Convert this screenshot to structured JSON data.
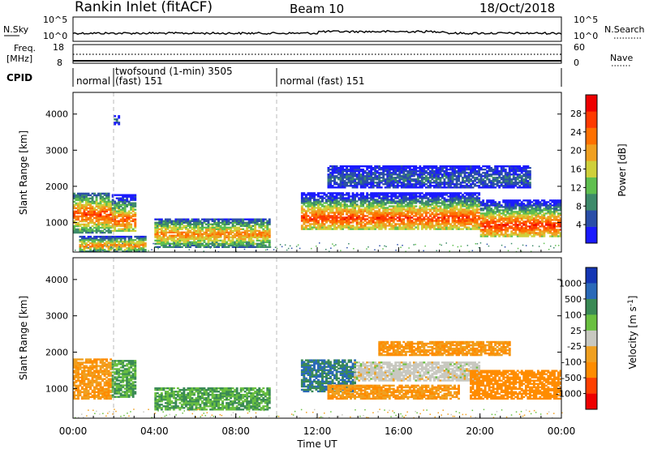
{
  "header": {
    "station": "Rankin Inlet (fitACF)",
    "beam": "Beam 10",
    "date": "18/Oct/2018"
  },
  "noise_panel": {
    "left_label": "N.Sky",
    "right_label": "N.Search",
    "left_ticks": [
      "10^5",
      "10^0"
    ],
    "right_ticks": [
      "10^5",
      "10^0"
    ]
  },
  "freq_panel": {
    "left_label_1": "Freq.",
    "left_label_2": "[MHz]",
    "left_ticks": [
      "18",
      "8"
    ],
    "right_label": "Nave",
    "right_ticks": [
      "60",
      "0"
    ]
  },
  "cpid": {
    "label": "CPID",
    "segments": [
      {
        "name": "normal",
        "start_h": 0,
        "end_h": 1.88
      },
      {
        "name": "twofsound (1-min) 3505",
        "sub": "(fast) 151",
        "start_h": 1.88,
        "end_h": 10.0
      },
      {
        "name": "normal (fast) 151",
        "start_h": 10.0,
        "end_h": 24
      }
    ]
  },
  "colors": {
    "power_scale": [
      "#1a1aff",
      "#2a4ea8",
      "#3d8a6a",
      "#5fbf4f",
      "#cfd03a",
      "#f0a020",
      "#ff7000",
      "#ff3a00",
      "#ee0000"
    ],
    "velocity_scale": [
      "#1436b4",
      "#2a69b8",
      "#3a8a55",
      "#6ac040",
      "#c8c8c0",
      "#f0a020",
      "#ff8c00",
      "#ff4000",
      "#ee0000"
    ]
  },
  "chart_data": [
    {
      "type": "heatmap",
      "title": "Power",
      "xlabel": "Time UT",
      "ylabel": "Slant Range [km]",
      "x_ticks": [
        "00:00",
        "04:00",
        "08:00",
        "12:00",
        "16:00",
        "20:00",
        "00:00"
      ],
      "x_range_hours": [
        0,
        24
      ],
      "y_ticks": [
        "1000",
        "2000",
        "3000",
        "4000"
      ],
      "ylim": [
        180,
        4600
      ],
      "colorbar": {
        "label": "Power [dB]",
        "ticks": [
          "4",
          "8",
          "12",
          "16",
          "20",
          "24",
          "28"
        ],
        "range": [
          0,
          32
        ]
      },
      "echo_regions": [
        {
          "t0": 0.0,
          "t1": 1.9,
          "r0": 700,
          "r1": 1800,
          "peak_range": 1200,
          "peak_value": 26
        },
        {
          "t0": 1.9,
          "t1": 3.1,
          "r0": 750,
          "r1": 1750,
          "peak_range": 1050,
          "peak_value": 25
        },
        {
          "t0": 0.3,
          "t1": 3.6,
          "r0": 180,
          "r1": 600,
          "peak_range": 350,
          "peak_value": 22
        },
        {
          "t0": 4.0,
          "t1": 9.6,
          "r0": 300,
          "r1": 1100,
          "peak_range": 650,
          "peak_value": 22
        },
        {
          "t0": 11.2,
          "t1": 20.0,
          "r0": 800,
          "r1": 1800,
          "peak_range": 1100,
          "peak_value": 27
        },
        {
          "t0": 20.0,
          "t1": 24.0,
          "r0": 600,
          "r1": 1600,
          "peak_range": 900,
          "peak_value": 28
        },
        {
          "t0": 12.5,
          "t1": 22.5,
          "r0": 1950,
          "r1": 2550,
          "peak_range": 2200,
          "peak_value": 7
        },
        {
          "t0": 2.0,
          "t1": 2.3,
          "r0": 3700,
          "r1": 3950,
          "peak_range": 3800,
          "peak_value": 8
        }
      ],
      "legend_position": "right"
    },
    {
      "type": "heatmap",
      "title": "Velocity",
      "xlabel": "Time UT",
      "ylabel": "Slant Range [km]",
      "x_ticks": [
        "00:00",
        "04:00",
        "08:00",
        "12:00",
        "16:00",
        "20:00",
        "00:00"
      ],
      "x_range_hours": [
        0,
        24
      ],
      "y_ticks": [
        "1000",
        "2000",
        "3000",
        "4000"
      ],
      "ylim": [
        180,
        4600
      ],
      "colorbar": {
        "label": "Velocity [m s^-1]",
        "ticks": [
          "1000",
          "500",
          "100",
          "25",
          "-25",
          "-100",
          "-500",
          "-1000"
        ]
      },
      "echo_regions": [
        {
          "t0": 0.0,
          "t1": 1.9,
          "r0": 700,
          "r1": 1800,
          "velocity": -100
        },
        {
          "t0": 1.9,
          "t1": 3.1,
          "r0": 750,
          "r1": 1750,
          "velocity": 100
        },
        {
          "t0": 4.0,
          "t1": 9.6,
          "r0": 400,
          "r1": 1000,
          "velocity": 100
        },
        {
          "t0": 11.2,
          "t1": 13.8,
          "r0": 900,
          "r1": 1800,
          "velocity": 500
        },
        {
          "t0": 13.8,
          "t1": 20.0,
          "r0": 1200,
          "r1": 1700,
          "velocity": 0
        },
        {
          "t0": 12.5,
          "t1": 19.0,
          "r0": 700,
          "r1": 1100,
          "velocity": -100
        },
        {
          "t0": 19.5,
          "t1": 24.0,
          "r0": 700,
          "r1": 1500,
          "velocity": -200
        },
        {
          "t0": 15.0,
          "t1": 21.5,
          "r0": 1900,
          "r1": 2300,
          "velocity": -100
        }
      ],
      "legend_position": "right"
    }
  ]
}
